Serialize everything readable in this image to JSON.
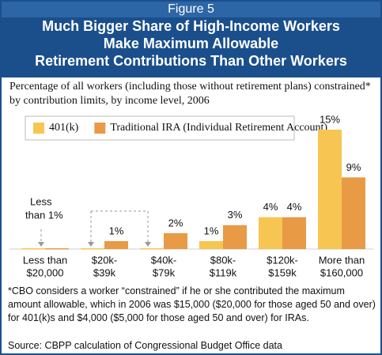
{
  "figure_label": "Figure 5",
  "chart_data": {
    "type": "bar",
    "title": [
      "Much Bigger Share of High-Income Workers",
      "Make Maximum Allowable",
      "Retirement Contributions Than Other Workers"
    ],
    "subtitle": "Percentage of all workers (including those without retirement plans) constrained* by contribution limits, by income level, 2006",
    "categories": [
      [
        "Less than",
        "$20,000"
      ],
      [
        "$20k-",
        "$39k"
      ],
      [
        "$40k-",
        "$79k"
      ],
      [
        "$80k-",
        "$119k"
      ],
      [
        "$120k-",
        "$159k"
      ],
      [
        "More than",
        "$160,000"
      ]
    ],
    "series": [
      {
        "name": "401(k)",
        "color": "#f7c551",
        "values": [
          0.1,
          0.1,
          0.1,
          1,
          4,
          15
        ],
        "value_labels": [
          null,
          null,
          null,
          "1%",
          "4%",
          "15%"
        ]
      },
      {
        "name": "Traditional IRA (Individual Retirement Account)",
        "color": "#e89a45",
        "values": [
          0.1,
          1,
          2,
          3,
          4,
          9
        ],
        "value_labels": [
          null,
          "1%",
          "2%",
          "3%",
          "4%",
          "9%"
        ]
      }
    ],
    "ylim": [
      0,
      15
    ],
    "annotation": [
      "Less",
      "than 1%"
    ],
    "legend": "top-left",
    "footnote": "*CBO considers a worker “constrained” if he or she contributed the maximum amount allowable, which in 2006 was $15,000 ($20,000 for those aged 50 and over) for 401(k)s and $4,000 ($5,000 for those aged 50 and over) for IRAs.",
    "source": "Source: CBPP calculation of Congressional Budget Office data"
  }
}
